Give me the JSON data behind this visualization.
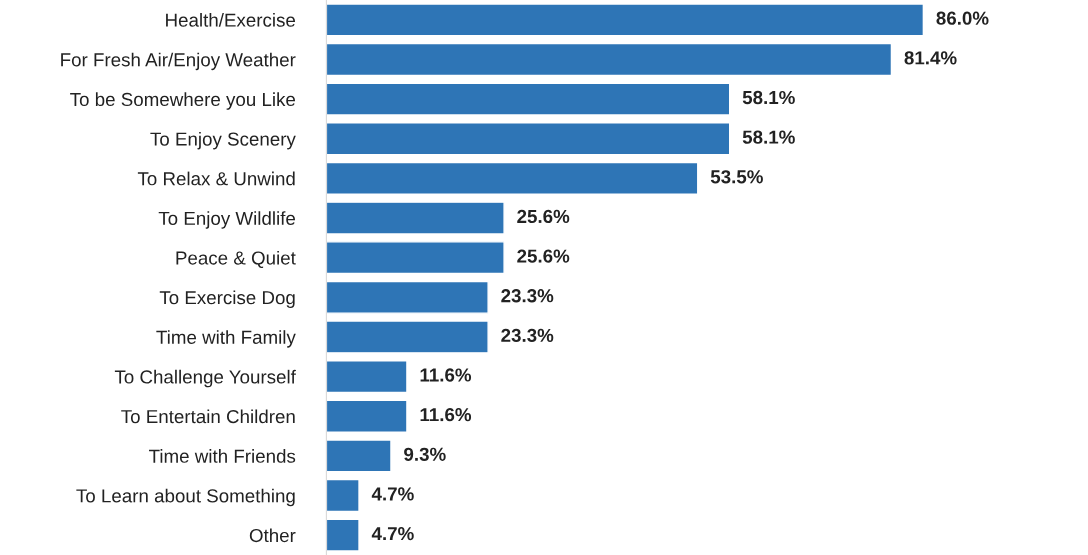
{
  "chart_data": {
    "type": "bar",
    "orientation": "horizontal",
    "color": "#2e75b6",
    "categories": [
      "Health/Exercise",
      "For Fresh Air/Enjoy Weather",
      "To be Somewhere you Like",
      "To Enjoy Scenery",
      "To Relax & Unwind",
      "To Enjoy Wildlife",
      "Peace & Quiet",
      "To Exercise Dog",
      "Time with Family",
      "To Challenge Yourself",
      "To Entertain Children",
      "Time with Friends",
      "To Learn about Something",
      "Other"
    ],
    "values": [
      86.0,
      81.4,
      58.1,
      58.1,
      53.5,
      25.6,
      25.6,
      23.3,
      23.3,
      11.6,
      11.6,
      9.3,
      4.7,
      4.7
    ],
    "value_labels": [
      "86.0%",
      "81.4%",
      "58.1%",
      "58.1%",
      "53.5%",
      "25.6%",
      "25.6%",
      "23.3%",
      "23.3%",
      "11.6%",
      "11.6%",
      "9.3%",
      "4.7%",
      "4.7%"
    ],
    "grid": false,
    "legend": false
  }
}
